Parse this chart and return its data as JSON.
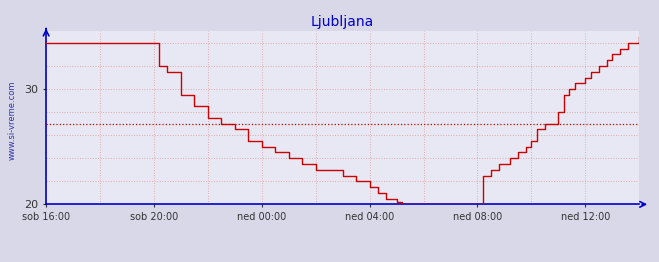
{
  "title": "Ljubljana",
  "title_color": "#0000cc",
  "bg_color": "#d8d8e8",
  "plot_bg_color": "#e8e8f4",
  "line_color": "#cc0000",
  "grid_color": "#ddaaaa",
  "grid_style": ":",
  "axis_color": "#0000cc",
  "ylabel_text": "www.si-vreme.com",
  "ylabel_color": "#3333aa",
  "legend_color": "#cc0000",
  "ylim": [
    20,
    35
  ],
  "yticks": [
    20,
    30
  ],
  "hline_y": 27.0,
  "hline_color": "#cc0000",
  "hline_style": ":",
  "xlim": [
    0,
    22.0
  ],
  "xtick_labels": [
    "sob 16:00",
    "sob 20:00",
    "ned 00:00",
    "ned 04:00",
    "ned 08:00",
    "ned 12:00"
  ],
  "xtick_positions": [
    0,
    4,
    8,
    12,
    16,
    20
  ],
  "temperature_data": [
    [
      0.0,
      34.0
    ],
    [
      0.5,
      34.0
    ],
    [
      1.0,
      34.0
    ],
    [
      1.5,
      34.0
    ],
    [
      2.0,
      34.0
    ],
    [
      2.5,
      34.0
    ],
    [
      3.0,
      34.0
    ],
    [
      3.5,
      34.0
    ],
    [
      4.0,
      34.0
    ],
    [
      4.2,
      32.0
    ],
    [
      4.5,
      31.5
    ],
    [
      5.0,
      29.5
    ],
    [
      5.5,
      28.5
    ],
    [
      6.0,
      27.5
    ],
    [
      6.5,
      27.0
    ],
    [
      7.0,
      26.5
    ],
    [
      7.5,
      25.5
    ],
    [
      8.0,
      25.0
    ],
    [
      8.5,
      24.5
    ],
    [
      9.0,
      24.0
    ],
    [
      9.5,
      23.5
    ],
    [
      10.0,
      23.0
    ],
    [
      10.5,
      23.0
    ],
    [
      11.0,
      22.5
    ],
    [
      11.5,
      22.0
    ],
    [
      12.0,
      21.5
    ],
    [
      12.3,
      21.0
    ],
    [
      12.6,
      20.5
    ],
    [
      12.9,
      20.5
    ],
    [
      13.0,
      20.2
    ],
    [
      13.2,
      20.0
    ],
    [
      13.5,
      20.0
    ],
    [
      14.0,
      20.0
    ],
    [
      14.5,
      20.0
    ],
    [
      15.0,
      20.0
    ],
    [
      15.5,
      20.0
    ],
    [
      16.0,
      20.0
    ],
    [
      16.1,
      20.0
    ],
    [
      16.2,
      22.5
    ],
    [
      16.5,
      23.0
    ],
    [
      16.8,
      23.5
    ],
    [
      17.0,
      23.5
    ],
    [
      17.2,
      24.0
    ],
    [
      17.5,
      24.5
    ],
    [
      17.8,
      25.0
    ],
    [
      18.0,
      25.5
    ],
    [
      18.2,
      26.5
    ],
    [
      18.5,
      27.0
    ],
    [
      18.8,
      27.0
    ],
    [
      19.0,
      28.0
    ],
    [
      19.2,
      29.5
    ],
    [
      19.4,
      30.0
    ],
    [
      19.6,
      30.5
    ],
    [
      20.0,
      31.0
    ],
    [
      20.2,
      31.5
    ],
    [
      20.5,
      32.0
    ],
    [
      20.8,
      32.5
    ],
    [
      21.0,
      33.0
    ],
    [
      21.3,
      33.5
    ],
    [
      21.6,
      34.0
    ],
    [
      22.0,
      34.5
    ]
  ]
}
